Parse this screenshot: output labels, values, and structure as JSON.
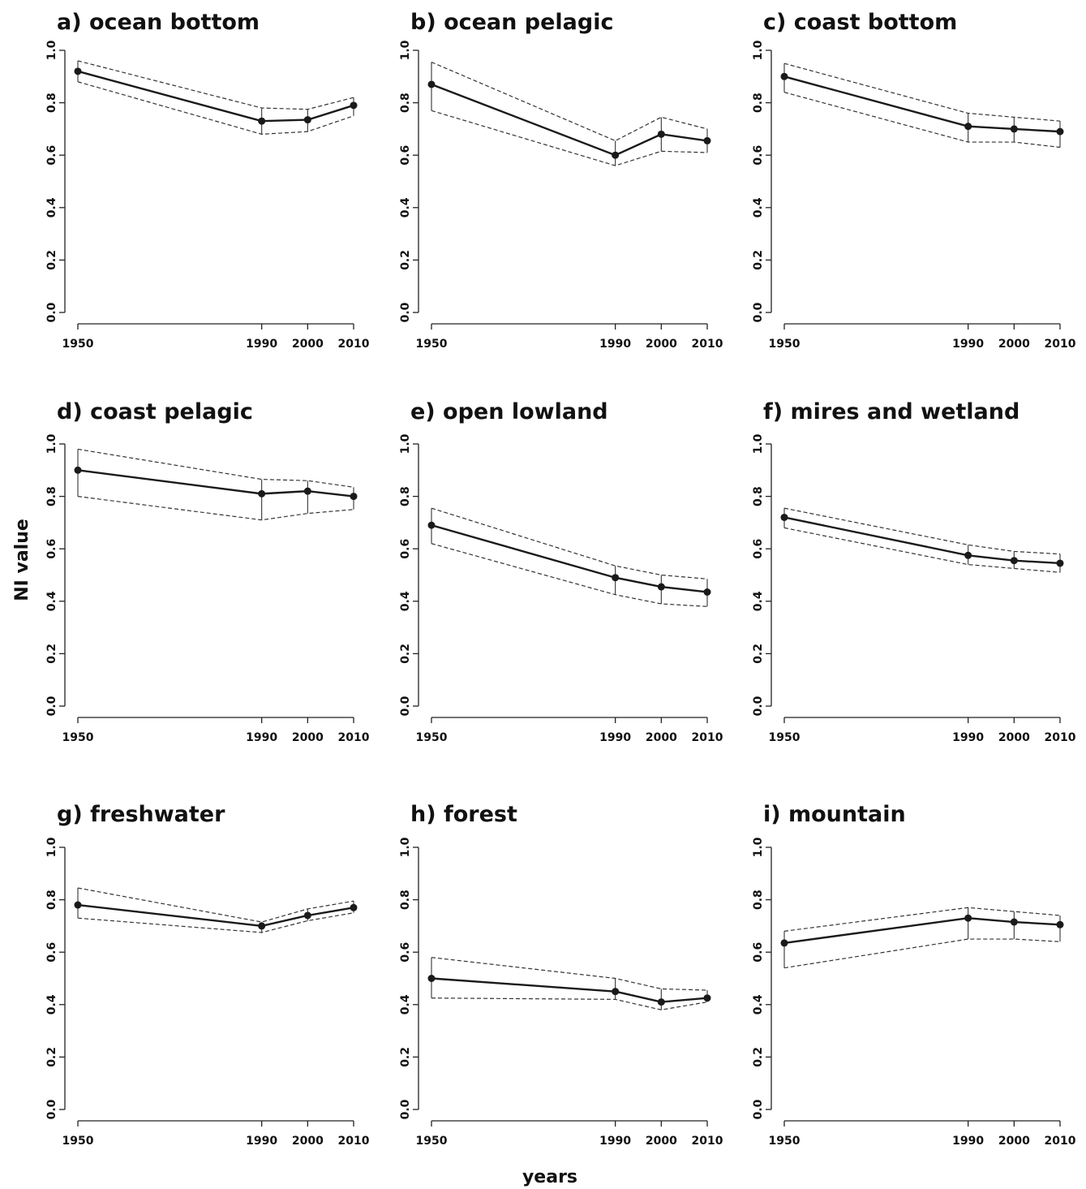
{
  "figure": {
    "ylabel": "NI value",
    "xlabel": "years"
  },
  "chart_data": [
    {
      "type": "line",
      "title": "a) ocean bottom",
      "x": [
        1950,
        1990,
        2000,
        2010
      ],
      "y": [
        0.92,
        0.73,
        0.735,
        0.79
      ],
      "lower": [
        0.88,
        0.68,
        0.69,
        0.75
      ],
      "upper": [
        0.96,
        0.78,
        0.775,
        0.82
      ],
      "xticks": [
        "1950",
        "1990",
        "2000",
        "2010"
      ],
      "yticks": [
        "0.0",
        "0.2",
        "0.4",
        "0.6",
        "0.8",
        "1.0"
      ],
      "ylim": [
        0,
        1
      ]
    },
    {
      "type": "line",
      "title": "b) ocean pelagic",
      "x": [
        1950,
        1990,
        2000,
        2010
      ],
      "y": [
        0.87,
        0.6,
        0.68,
        0.655
      ],
      "lower": [
        0.77,
        0.56,
        0.615,
        0.61
      ],
      "upper": [
        0.955,
        0.655,
        0.745,
        0.7
      ],
      "xticks": [
        "1950",
        "1990",
        "2000",
        "2010"
      ],
      "yticks": [
        "0.0",
        "0.2",
        "0.4",
        "0.6",
        "0.8",
        "1.0"
      ],
      "ylim": [
        0,
        1
      ]
    },
    {
      "type": "line",
      "title": "c) coast bottom",
      "x": [
        1950,
        1990,
        2000,
        2010
      ],
      "y": [
        0.9,
        0.71,
        0.7,
        0.69
      ],
      "lower": [
        0.84,
        0.65,
        0.65,
        0.63
      ],
      "upper": [
        0.95,
        0.76,
        0.745,
        0.73
      ],
      "xticks": [
        "1950",
        "1990",
        "2000",
        "2010"
      ],
      "yticks": [
        "0.0",
        "0.2",
        "0.4",
        "0.6",
        "0.8",
        "1.0"
      ],
      "ylim": [
        0,
        1
      ]
    },
    {
      "type": "line",
      "title": "d) coast pelagic",
      "x": [
        1950,
        1990,
        2000,
        2010
      ],
      "y": [
        0.9,
        0.81,
        0.82,
        0.8
      ],
      "lower": [
        0.8,
        0.71,
        0.735,
        0.75
      ],
      "upper": [
        0.98,
        0.865,
        0.86,
        0.835
      ],
      "xticks": [
        "1950",
        "1990",
        "2000",
        "2010"
      ],
      "yticks": [
        "0.0",
        "0.2",
        "0.4",
        "0.6",
        "0.8",
        "1.0"
      ],
      "ylim": [
        0,
        1
      ]
    },
    {
      "type": "line",
      "title": "e) open lowland",
      "x": [
        1950,
        1990,
        2000,
        2010
      ],
      "y": [
        0.69,
        0.49,
        0.455,
        0.435
      ],
      "lower": [
        0.62,
        0.425,
        0.39,
        0.38
      ],
      "upper": [
        0.755,
        0.535,
        0.5,
        0.485
      ],
      "xticks": [
        "1950",
        "1990",
        "2000",
        "2010"
      ],
      "yticks": [
        "0.0",
        "0.2",
        "0.4",
        "0.6",
        "0.8",
        "1.0"
      ],
      "ylim": [
        0,
        1
      ]
    },
    {
      "type": "line",
      "title": "f) mires and wetland",
      "x": [
        1950,
        1990,
        2000,
        2010
      ],
      "y": [
        0.72,
        0.575,
        0.555,
        0.545
      ],
      "lower": [
        0.68,
        0.54,
        0.525,
        0.51
      ],
      "upper": [
        0.755,
        0.615,
        0.59,
        0.58
      ],
      "xticks": [
        "1950",
        "1990",
        "2000",
        "2010"
      ],
      "yticks": [
        "0.0",
        "0.2",
        "0.4",
        "0.6",
        "0.8",
        "1.0"
      ],
      "ylim": [
        0,
        1
      ]
    },
    {
      "type": "line",
      "title": "g) freshwater",
      "x": [
        1950,
        1990,
        2000,
        2010
      ],
      "y": [
        0.78,
        0.7,
        0.74,
        0.77
      ],
      "lower": [
        0.73,
        0.675,
        0.72,
        0.75
      ],
      "upper": [
        0.845,
        0.715,
        0.765,
        0.795
      ],
      "xticks": [
        "1950",
        "1990",
        "2000",
        "2010"
      ],
      "yticks": [
        "0.0",
        "0.2",
        "0.4",
        "0.6",
        "0.8",
        "1.0"
      ],
      "ylim": [
        0,
        1
      ]
    },
    {
      "type": "line",
      "title": "h) forest",
      "x": [
        1950,
        1990,
        2000,
        2010
      ],
      "y": [
        0.5,
        0.45,
        0.41,
        0.425
      ],
      "lower": [
        0.425,
        0.42,
        0.38,
        0.41
      ],
      "upper": [
        0.58,
        0.5,
        0.46,
        0.455
      ],
      "xticks": [
        "1950",
        "1990",
        "2000",
        "2010"
      ],
      "yticks": [
        "0.0",
        "0.2",
        "0.4",
        "0.6",
        "0.8",
        "1.0"
      ],
      "ylim": [
        0,
        1
      ]
    },
    {
      "type": "line",
      "title": "i) mountain",
      "x": [
        1950,
        1990,
        2000,
        2010
      ],
      "y": [
        0.635,
        0.73,
        0.715,
        0.705
      ],
      "lower": [
        0.54,
        0.65,
        0.65,
        0.64
      ],
      "upper": [
        0.68,
        0.77,
        0.755,
        0.74
      ],
      "xticks": [
        "1950",
        "1990",
        "2000",
        "2010"
      ],
      "yticks": [
        "0.0",
        "0.2",
        "0.4",
        "0.6",
        "0.8",
        "1.0"
      ],
      "ylim": [
        0,
        1
      ]
    }
  ]
}
